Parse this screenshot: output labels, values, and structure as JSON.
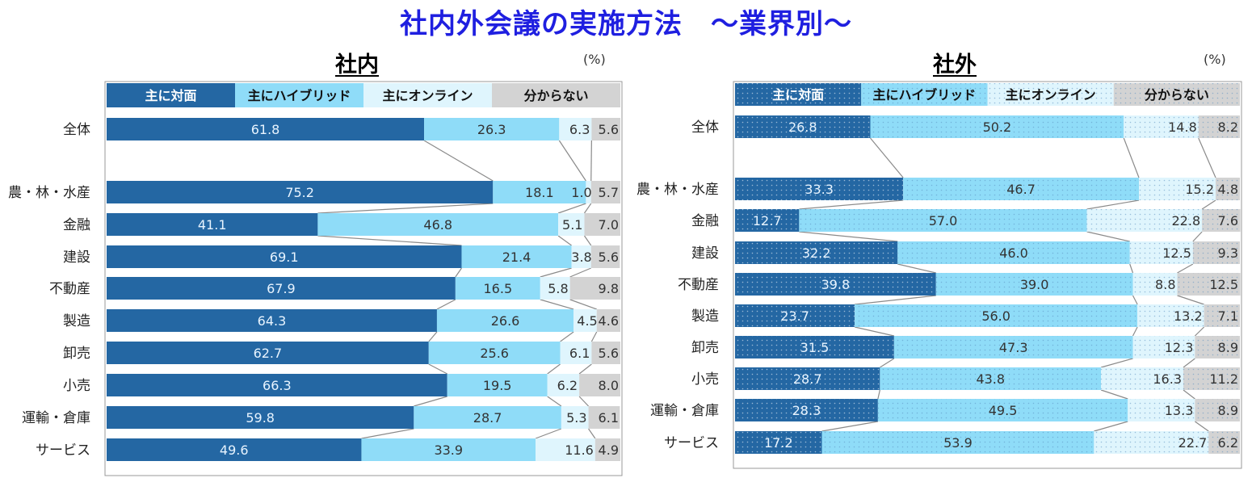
{
  "title": "社内外会議の実施方法　～業界別～",
  "colors": {
    "face": "#2467a3",
    "hybrid": "#8fdcf8",
    "online": "#dff5fd",
    "unknown": "#d3d3d3"
  },
  "chart_data": [
    {
      "type": "bar",
      "orientation": "horizontal",
      "stacked": true,
      "percent": true,
      "title": "社内",
      "unit": "(%)",
      "legend": [
        "主に対面",
        "主にハイブリッド",
        "主にオンライン",
        "分からない"
      ],
      "categories": [
        "全体",
        "農・林・水産",
        "金融",
        "建設",
        "不動産",
        "製造",
        "卸売",
        "小売",
        "運輸・倉庫",
        "サービス"
      ],
      "series": [
        {
          "name": "主に対面",
          "values": [
            61.8,
            75.2,
            41.1,
            69.1,
            67.9,
            64.3,
            62.7,
            66.3,
            59.8,
            49.6
          ]
        },
        {
          "name": "主にハイブリッド",
          "values": [
            26.3,
            18.1,
            46.8,
            21.4,
            16.5,
            26.6,
            25.6,
            19.5,
            28.7,
            33.9
          ]
        },
        {
          "name": "主にオンライン",
          "values": [
            6.3,
            1.0,
            5.1,
            3.8,
            5.8,
            4.5,
            6.1,
            6.2,
            5.3,
            11.6
          ]
        },
        {
          "name": "分からない",
          "values": [
            5.6,
            5.7,
            7.0,
            5.6,
            9.8,
            4.6,
            5.6,
            8.0,
            6.1,
            4.9
          ]
        }
      ],
      "xlim": [
        0,
        100
      ]
    },
    {
      "type": "bar",
      "orientation": "horizontal",
      "stacked": true,
      "percent": true,
      "title": "社外",
      "unit": "(%)",
      "legend": [
        "主に対面",
        "主にハイブリッド",
        "主にオンライン",
        "分からない"
      ],
      "categories": [
        "全体",
        "農・林・水産",
        "金融",
        "建設",
        "不動産",
        "製造",
        "卸売",
        "小売",
        "運輸・倉庫",
        "サービス"
      ],
      "series": [
        {
          "name": "主に対面",
          "values": [
            26.8,
            33.3,
            12.7,
            32.2,
            39.8,
            23.7,
            31.5,
            28.7,
            28.3,
            17.2
          ]
        },
        {
          "name": "主にハイブリッド",
          "values": [
            50.2,
            46.7,
            57.0,
            46.0,
            39.0,
            56.0,
            47.3,
            43.8,
            49.5,
            53.9
          ]
        },
        {
          "name": "主にオンライン",
          "values": [
            14.8,
            15.2,
            22.8,
            12.5,
            8.8,
            13.2,
            12.3,
            16.3,
            13.3,
            22.7
          ]
        },
        {
          "name": "分からない",
          "values": [
            8.2,
            4.8,
            7.6,
            9.3,
            12.5,
            7.1,
            8.9,
            11.2,
            8.9,
            6.2
          ]
        }
      ],
      "xlim": [
        0,
        100
      ]
    }
  ]
}
